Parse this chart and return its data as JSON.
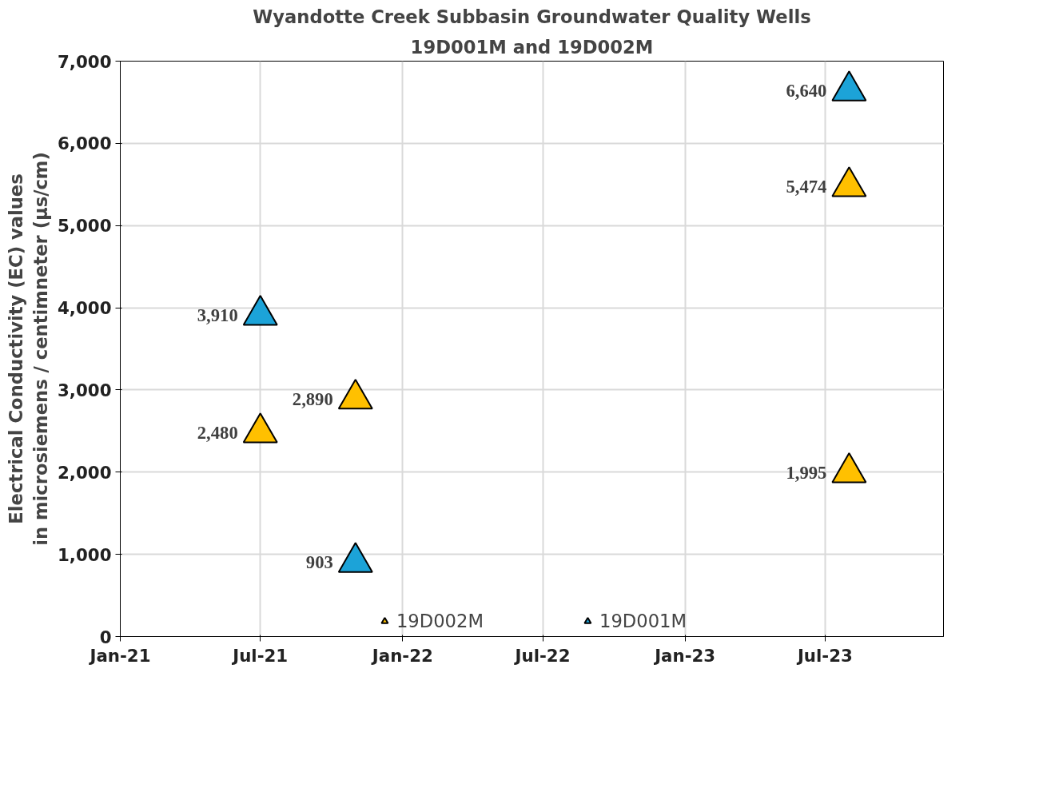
{
  "chart_data": {
    "type": "scatter",
    "title": "Wyandotte Creek Subbasin Groundwater Quality Wells",
    "subtitle": "19D001M and 19D002M",
    "ylabel": "Electrical Conductivity (EC) values\nin microsiemens / centimneter (µs/cm)",
    "series": [
      {
        "name": "19D002M",
        "color": "#ffc000",
        "x": [
          "2021-07",
          "2021-11",
          "2023-08",
          "2023-08"
        ],
        "values": [
          2480,
          2890,
          5474,
          1995
        ],
        "value_labels": [
          "2,480",
          "2,890",
          "5,474",
          "1,995"
        ]
      },
      {
        "name": "19D001M",
        "color": "#1ca3d8",
        "x": [
          "2021-07",
          "2021-11",
          "2023-08"
        ],
        "values": [
          3910,
          903,
          6640
        ],
        "value_labels": [
          "3,910",
          "903",
          "6,640"
        ]
      }
    ],
    "xlim": [
      "2021-01",
      "2023-12"
    ],
    "xticks": [
      {
        "value": "2021-01",
        "label": "Jan-21"
      },
      {
        "value": "2021-07",
        "label": "Jul-21"
      },
      {
        "value": "2022-01",
        "label": "Jan-22"
      },
      {
        "value": "2022-07",
        "label": "Jul-22"
      },
      {
        "value": "2023-01",
        "label": "Jan-23"
      },
      {
        "value": "2023-07",
        "label": "Jul-23"
      }
    ],
    "ylim": [
      0,
      7000
    ],
    "yticks": [
      {
        "value": 0,
        "label": "0"
      },
      {
        "value": 1000,
        "label": "1,000"
      },
      {
        "value": 2000,
        "label": "2,000"
      },
      {
        "value": 3000,
        "label": "3,000"
      },
      {
        "value": 4000,
        "label": "4,000"
      },
      {
        "value": 5000,
        "label": "5,000"
      },
      {
        "value": 6000,
        "label": "6,000"
      },
      {
        "value": 7000,
        "label": "7,000"
      }
    ],
    "grid": true,
    "legend": "bottom",
    "marker": "triangle"
  }
}
